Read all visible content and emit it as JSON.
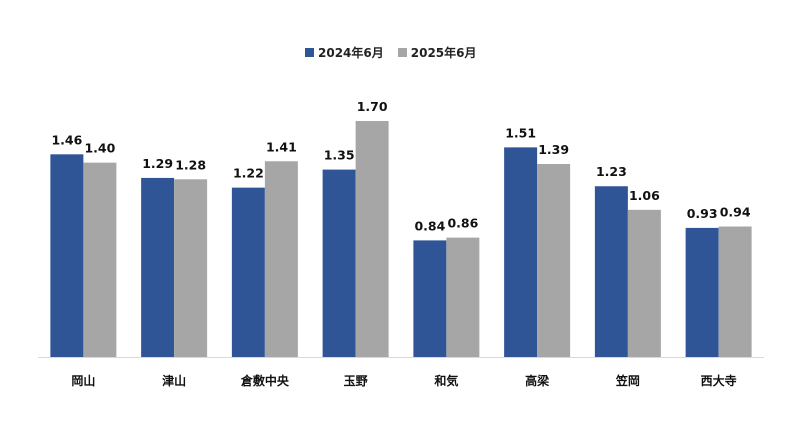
{
  "colors": {
    "series_2024": "#2f5597",
    "series_2025": "#a6a6a6",
    "axis": "#d9d9d9"
  },
  "chart_data": {
    "type": "bar",
    "categories": [
      "岡山",
      "津山",
      "倉敷中央",
      "玉野",
      "和気",
      "高梁",
      "笠岡",
      "西大寺"
    ],
    "series": [
      {
        "name": "2024年6月",
        "values": [
          1.46,
          1.29,
          1.22,
          1.35,
          0.84,
          1.51,
          1.23,
          0.93
        ],
        "labels": [
          "1.46",
          "1.29",
          "1.22",
          "1.35",
          "0.84",
          "1.51",
          "1.23",
          "0.93"
        ]
      },
      {
        "name": "2025年6月",
        "values": [
          1.4,
          1.28,
          1.41,
          1.7,
          0.86,
          1.39,
          1.06,
          0.94
        ],
        "labels": [
          "1.40",
          "1.28",
          "1.41",
          "1.70",
          "0.86",
          "1.39",
          "1.06",
          "0.94"
        ]
      }
    ],
    "ylim": [
      0,
      1.7
    ],
    "grid": false,
    "legend_position": "top-center"
  }
}
